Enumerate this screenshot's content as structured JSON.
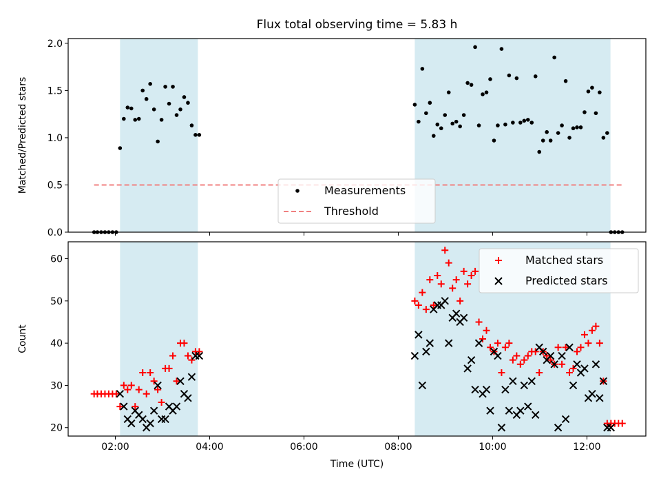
{
  "chart_data": [
    {
      "type": "scatter",
      "title": "Flux total observing time = 5.83 h",
      "xlabel": "",
      "ylabel": "Matched/Predicted stars",
      "xlim": [
        1.0,
        13.25
      ],
      "ylim": [
        0.0,
        2.05
      ],
      "x_ticks": [
        {
          "value": 2,
          "label": "02:00"
        },
        {
          "value": 4,
          "label": "04:00"
        },
        {
          "value": 6,
          "label": "06:00"
        },
        {
          "value": 8,
          "label": "08:00"
        },
        {
          "value": 10,
          "label": "10:00"
        },
        {
          "value": 12,
          "label": "12:00"
        }
      ],
      "y_ticks": [
        {
          "value": 0.0,
          "label": "0.0"
        },
        {
          "value": 0.5,
          "label": "0.5"
        },
        {
          "value": 1.0,
          "label": "1.0"
        },
        {
          "value": 1.5,
          "label": "1.5"
        },
        {
          "value": 2.0,
          "label": "2.0"
        }
      ],
      "shaded_intervals": [
        [
          2.1,
          3.75
        ],
        [
          8.35,
          12.5
        ]
      ],
      "legend_position": "lower-center",
      "series": [
        {
          "name": "Measurements",
          "marker": "dot",
          "color": "#000000",
          "x": [
            1.55,
            1.62,
            1.7,
            1.78,
            1.86,
            1.94,
            2.02,
            2.1,
            2.18,
            2.26,
            2.34,
            2.42,
            2.5,
            2.58,
            2.66,
            2.74,
            2.82,
            2.9,
            2.98,
            3.06,
            3.14,
            3.22,
            3.3,
            3.38,
            3.46,
            3.54,
            3.62,
            3.7,
            3.78,
            8.35,
            8.43,
            8.51,
            8.59,
            8.67,
            8.75,
            8.83,
            8.91,
            8.99,
            9.07,
            9.15,
            9.23,
            9.31,
            9.39,
            9.47,
            9.55,
            9.63,
            9.71,
            9.79,
            9.87,
            9.95,
            10.03,
            10.11,
            10.19,
            10.27,
            10.35,
            10.43,
            10.51,
            10.59,
            10.67,
            10.75,
            10.83,
            10.91,
            10.99,
            11.07,
            11.15,
            11.23,
            11.31,
            11.39,
            11.47,
            11.55,
            11.63,
            11.71,
            11.79,
            11.87,
            11.95,
            12.03,
            12.11,
            12.19,
            12.27,
            12.35,
            12.43,
            12.51,
            12.59,
            12.67,
            12.75
          ],
          "y": [
            0,
            0,
            0,
            0,
            0,
            0,
            0,
            0.89,
            1.2,
            1.32,
            1.31,
            1.19,
            1.2,
            1.5,
            1.41,
            1.57,
            1.3,
            0.96,
            1.19,
            1.54,
            1.36,
            1.54,
            1.24,
            1.3,
            1.43,
            1.37,
            1.13,
            1.03,
            1.03,
            1.35,
            1.17,
            1.73,
            1.26,
            1.37,
            1.02,
            1.14,
            1.1,
            1.24,
            1.48,
            1.15,
            1.17,
            1.12,
            1.24,
            1.58,
            1.56,
            1.96,
            1.13,
            1.46,
            1.48,
            1.62,
            0.97,
            1.13,
            1.94,
            1.14,
            1.66,
            1.16,
            1.63,
            1.16,
            1.18,
            1.19,
            1.16,
            1.65,
            0.85,
            0.97,
            1.06,
            0.97,
            1.85,
            1.05,
            1.13,
            1.6,
            1.0,
            1.1,
            1.11,
            1.11,
            1.27,
            1.49,
            1.53,
            1.26,
            1.48,
            1.0,
            1.05,
            0,
            0,
            0,
            0
          ]
        },
        {
          "name": "Threshold",
          "marker": "dashed-line",
          "color": "#f08080",
          "x": [
            1.55,
            12.75
          ],
          "y": [
            0.5,
            0.5
          ]
        }
      ]
    },
    {
      "type": "scatter",
      "title": "",
      "xlabel": "Time (UTC)",
      "ylabel": "Count",
      "xlim": [
        1.0,
        13.25
      ],
      "ylim": [
        18.0,
        64.0
      ],
      "x_ticks": [
        {
          "value": 2,
          "label": "02:00"
        },
        {
          "value": 4,
          "label": "04:00"
        },
        {
          "value": 6,
          "label": "06:00"
        },
        {
          "value": 8,
          "label": "08:00"
        },
        {
          "value": 10,
          "label": "10:00"
        },
        {
          "value": 12,
          "label": "12:00"
        }
      ],
      "y_ticks": [
        {
          "value": 20,
          "label": "20"
        },
        {
          "value": 30,
          "label": "30"
        },
        {
          "value": 40,
          "label": "40"
        },
        {
          "value": 50,
          "label": "50"
        },
        {
          "value": 60,
          "label": "60"
        }
      ],
      "shaded_intervals": [
        [
          2.1,
          3.75
        ],
        [
          8.35,
          12.5
        ]
      ],
      "legend_position": "top-right",
      "series": [
        {
          "name": "Matched stars",
          "marker": "plus",
          "color": "#ff0000",
          "x": [
            1.55,
            1.62,
            1.7,
            1.78,
            1.86,
            1.94,
            2.02,
            2.1,
            2.18,
            2.26,
            2.34,
            2.42,
            2.5,
            2.58,
            2.66,
            2.74,
            2.82,
            2.9,
            2.98,
            3.06,
            3.14,
            3.22,
            3.3,
            3.38,
            3.46,
            3.54,
            3.62,
            3.7,
            3.78,
            8.35,
            8.43,
            8.51,
            8.59,
            8.67,
            8.75,
            8.83,
            8.91,
            8.99,
            9.07,
            9.15,
            9.23,
            9.31,
            9.39,
            9.47,
            9.55,
            9.63,
            9.71,
            9.79,
            9.87,
            9.95,
            10.03,
            10.11,
            10.19,
            10.27,
            10.35,
            10.43,
            10.51,
            10.59,
            10.67,
            10.75,
            10.83,
            10.91,
            10.99,
            11.07,
            11.15,
            11.23,
            11.31,
            11.39,
            11.47,
            11.55,
            11.63,
            11.71,
            11.79,
            11.87,
            11.95,
            12.03,
            12.11,
            12.19,
            12.27,
            12.35,
            12.43,
            12.51,
            12.59,
            12.67,
            12.75
          ],
          "y": [
            28,
            28,
            28,
            28,
            28,
            28,
            28,
            25,
            30,
            29,
            30,
            25,
            29,
            33,
            28,
            33,
            31,
            29,
            26,
            34,
            34,
            37,
            31,
            40,
            40,
            37,
            36,
            38,
            38,
            50,
            49,
            52,
            48,
            55,
            49,
            56,
            54,
            62,
            59,
            53,
            55,
            50,
            57,
            54,
            56,
            57,
            45,
            41,
            43,
            39,
            38,
            40,
            33,
            39,
            40,
            36,
            37,
            35,
            36,
            37,
            38,
            38,
            33,
            38,
            37,
            36,
            35,
            39,
            35,
            39,
            33,
            34,
            38,
            39,
            42,
            40,
            43,
            44,
            40,
            31,
            21,
            21,
            21,
            21,
            21
          ]
        },
        {
          "name": "Predicted stars",
          "marker": "x",
          "color": "#000000",
          "x": [
            2.1,
            2.18,
            2.26,
            2.34,
            2.42,
            2.5,
            2.58,
            2.66,
            2.74,
            2.82,
            2.9,
            2.98,
            3.06,
            3.14,
            3.22,
            3.3,
            3.38,
            3.46,
            3.54,
            3.62,
            3.7,
            3.78,
            8.35,
            8.43,
            8.51,
            8.59,
            8.67,
            8.75,
            8.83,
            8.91,
            8.99,
            9.07,
            9.15,
            9.23,
            9.31,
            9.39,
            9.47,
            9.55,
            9.63,
            9.71,
            9.79,
            9.87,
            9.95,
            10.03,
            10.11,
            10.19,
            10.27,
            10.35,
            10.43,
            10.51,
            10.59,
            10.67,
            10.75,
            10.83,
            10.91,
            10.99,
            11.07,
            11.15,
            11.23,
            11.31,
            11.39,
            11.47,
            11.55,
            11.63,
            11.71,
            11.79,
            11.87,
            11.95,
            12.03,
            12.11,
            12.19,
            12.27,
            12.35,
            12.43,
            12.51
          ],
          "y": [
            28,
            25,
            22,
            21,
            24,
            23,
            22,
            20,
            21,
            24,
            30,
            22,
            22,
            25,
            24,
            25,
            31,
            28,
            27,
            32,
            37,
            37,
            37,
            42,
            30,
            38,
            40,
            48,
            49,
            49,
            50,
            40,
            46,
            47,
            45,
            46,
            34,
            36,
            29,
            40,
            28,
            29,
            24,
            38,
            37,
            20,
            29,
            24,
            31,
            23,
            24,
            30,
            25,
            31,
            23,
            39,
            38,
            36,
            37,
            35,
            20,
            37,
            22,
            39,
            30,
            35,
            33,
            34,
            27,
            28,
            35,
            27,
            31,
            20,
            20
          ]
        }
      ]
    }
  ]
}
